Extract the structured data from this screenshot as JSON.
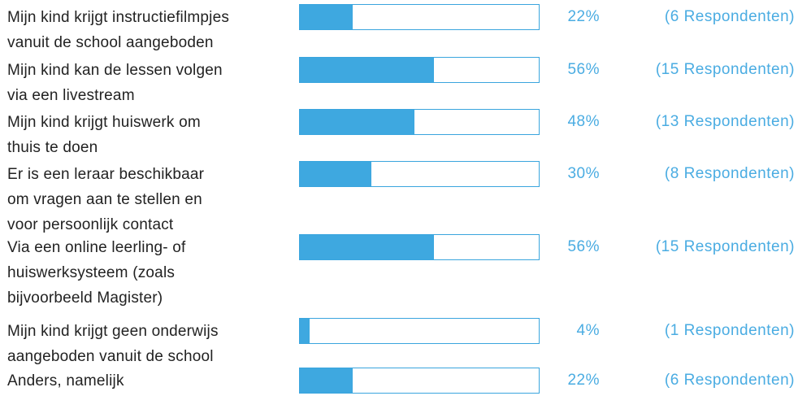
{
  "chart_data": {
    "type": "bar",
    "orientation": "horizontal",
    "categories": [
      "Mijn kind krijgt instructiefilmpjes\nvanuit de school aangeboden",
      "Mijn kind kan de lessen volgen\nvia een livestream",
      "Mijn kind krijgt huiswerk om\nthuis te doen",
      "Er is een leraar beschikbaar\nom vragen aan te stellen en\nvoor persoonlijk contact",
      "Via een online leerling- of\nhuiswerksysteem (zoals\nbijvoorbeeld Magister)",
      "Mijn kind krijgt geen onderwijs\naangeboden vanuit de school",
      "Anders, namelijk"
    ],
    "values": [
      22,
      56,
      48,
      30,
      56,
      4,
      22
    ],
    "value_labels": [
      "22%",
      "56%",
      "48%",
      "30%",
      "56%",
      "4%",
      "22%"
    ],
    "respondent_labels": [
      "(6 Respondenten)",
      "(15 Respondenten)",
      "(13 Respondenten)",
      "(8 Respondenten)",
      "(15 Respondenten)",
      "(1 Respondenten)",
      "(6 Respondenten)"
    ],
    "color": "#3ea8e0",
    "xlim": [
      0,
      100
    ]
  }
}
